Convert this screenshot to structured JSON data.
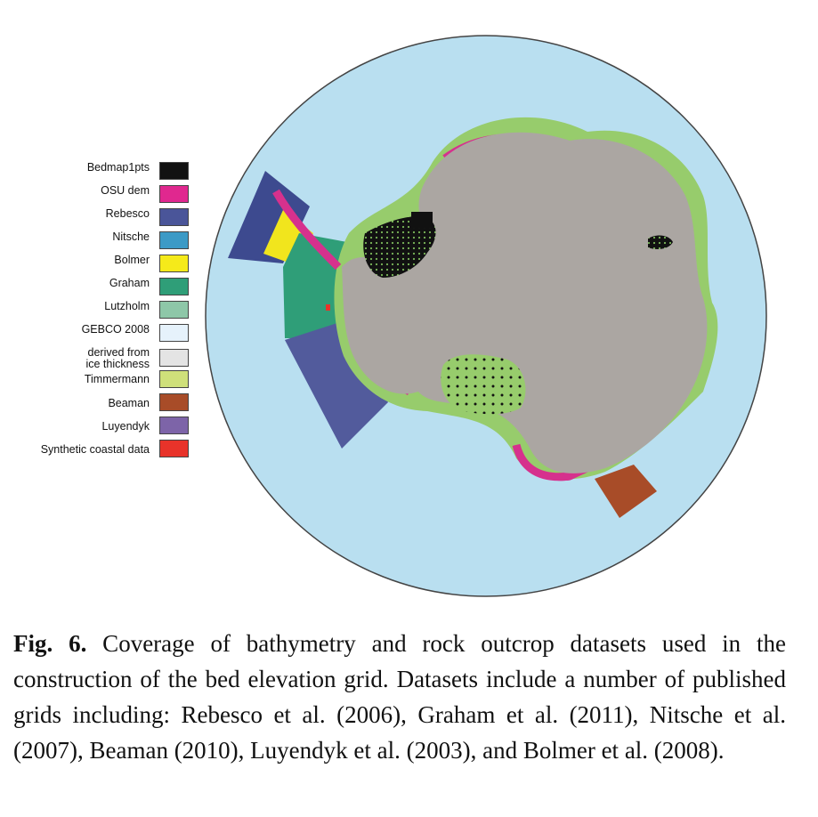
{
  "legend": [
    {
      "label": "Bedmap1pts",
      "color": "#111111"
    },
    {
      "label": "OSU dem",
      "color": "#e0288f"
    },
    {
      "label": "Rebesco",
      "color": "#4a5599"
    },
    {
      "label": "Nitsche",
      "color": "#3c9ac6"
    },
    {
      "label": "Bolmer",
      "color": "#f5ea1a"
    },
    {
      "label": "Graham",
      "color": "#2f9e78"
    },
    {
      "label": "Lutzholm",
      "color": "#8ec7a8"
    },
    {
      "label": "GEBCO 2008",
      "color": "#e6f2fb"
    },
    {
      "label": "derived from\nice thickness",
      "color": "#e4e4e4"
    },
    {
      "label": "Timmermann",
      "color": "#cfe07a"
    },
    {
      "label": "Beaman",
      "color": "#a84c28"
    },
    {
      "label": "Luyendyk",
      "color": "#7d64a8"
    },
    {
      "label": "Synthetic coastal data",
      "color": "#e8332a"
    }
  ],
  "colors": {
    "ocean": "#b9dff0",
    "continent": "#aba6a2",
    "shelf_green": "#97cc6c",
    "coast_magenta": "#d6318d"
  },
  "caption": {
    "label": "Fig. 6.",
    "text": " Coverage of bathymetry and rock outcrop datasets used in the construction of the bed elevation grid. Datasets include a number of published grids including: Rebesco et al. (2006), Graham et al. (2011), Nitsche et al. (2007), Beaman (2010), Luyendyk et al. (2003), and Bolmer et al. (2008)."
  }
}
